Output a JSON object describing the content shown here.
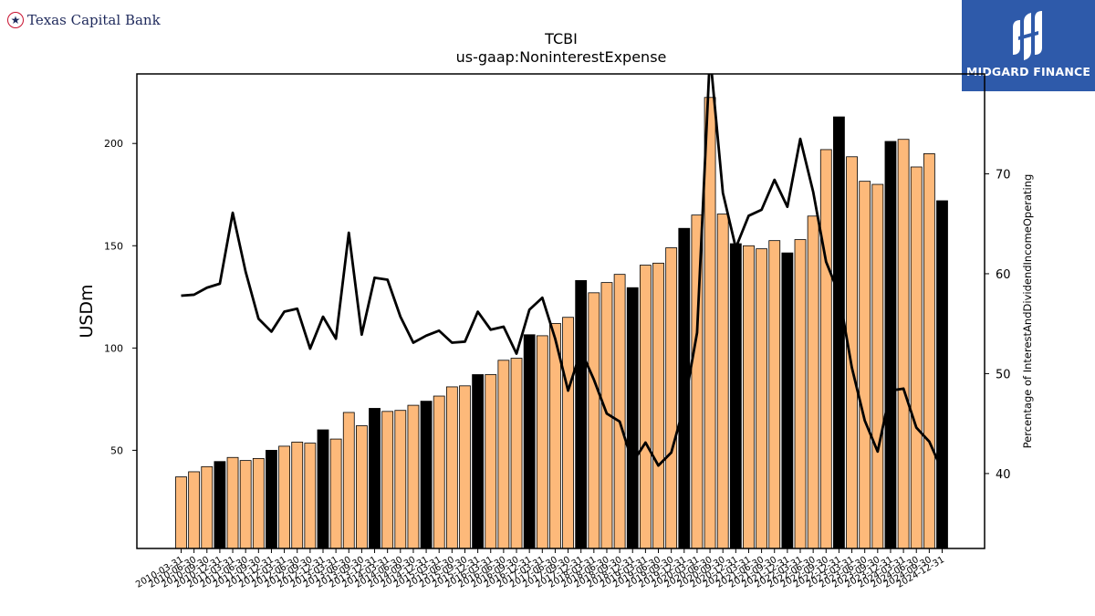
{
  "logos": {
    "left_text": "Texas Capital Bank",
    "right_text": "MIDGARD FINANCE"
  },
  "colors": {
    "bar_default": "#fdb97a",
    "bar_q4": "#000000",
    "line": "#000000"
  },
  "chart_data": {
    "type": "bar",
    "title": "TCBI",
    "subtitle": "us-gaap:NoninterestExpense",
    "ylabel": "USDm",
    "y2label": "Percentage of InterestAndDividendIncomeOperating",
    "ylim": [
      2,
      234
    ],
    "y2lim": [
      32.5,
      80
    ],
    "yticks": [
      50,
      100,
      150,
      200
    ],
    "y2ticks": [
      40,
      50,
      60,
      70
    ],
    "categories": [
      "2010-03-31",
      "2010-06-30",
      "2010-09-30",
      "2010-12-31",
      "2011-03-31",
      "2011-06-30",
      "2011-09-30",
      "2011-12-31",
      "2012-03-31",
      "2012-06-30",
      "2012-09-30",
      "2012-12-31",
      "2013-03-31",
      "2013-06-30",
      "2013-09-30",
      "2013-12-31",
      "2014-03-31",
      "2014-06-30",
      "2014-09-30",
      "2014-12-31",
      "2015-03-31",
      "2015-06-30",
      "2015-09-30",
      "2015-12-31",
      "2016-03-31",
      "2016-06-30",
      "2016-09-30",
      "2016-12-31",
      "2017-03-31",
      "2017-06-30",
      "2017-09-30",
      "2017-12-31",
      "2018-03-31",
      "2018-06-30",
      "2018-09-30",
      "2018-12-31",
      "2019-03-31",
      "2019-06-30",
      "2019-09-30",
      "2019-12-31",
      "2020-03-31",
      "2020-06-30",
      "2020-09-30",
      "2020-12-31",
      "2021-03-31",
      "2021-06-30",
      "2021-09-30",
      "2021-12-31",
      "2022-03-31",
      "2022-06-30",
      "2022-09-30",
      "2022-12-31",
      "2023-03-31",
      "2023-06-30",
      "2023-09-30",
      "2023-12-31",
      "2024-03-31",
      "2024-06-30",
      "2024-09-30",
      "2024-12-31"
    ],
    "series": [
      {
        "kind": "bar",
        "values": [
          37,
          39.5,
          42,
          44.5,
          46.5,
          45,
          46,
          50,
          52,
          54,
          53.5,
          60,
          55.5,
          68.5,
          62,
          70.5,
          69,
          69.5,
          72,
          74,
          76.5,
          81,
          81.5,
          87,
          87,
          94,
          95,
          106.5,
          106,
          112,
          115,
          133,
          127,
          132,
          136,
          129.5,
          140.5,
          141.5,
          149,
          158.5,
          165,
          222.5,
          165.5,
          151,
          150,
          148.5,
          152.5,
          146.5,
          153,
          164.5,
          197,
          213,
          193.5,
          181.5,
          180,
          201,
          202,
          188.5,
          195,
          172
        ]
      },
      {
        "kind": "line",
        "axis": "right",
        "values": [
          57.8,
          57.9,
          58.6,
          59.0,
          66.1,
          60.2,
          55.5,
          54.2,
          56.2,
          56.5,
          52.5,
          55.7,
          53.5,
          64.1,
          53.9,
          59.6,
          59.4,
          55.7,
          53.1,
          53.8,
          54.3,
          53.1,
          53.2,
          56.2,
          54.4,
          54.7,
          52.0,
          56.4,
          57.6,
          53.5,
          48.3,
          52.3,
          49.4,
          46.0,
          45.2,
          41.1,
          43.1,
          40.8,
          42.1,
          46.8,
          54.1,
          82.0,
          68.1,
          62.6,
          65.8,
          66.4,
          69.4,
          66.7,
          73.5,
          68.2,
          61.2,
          58.0,
          50.6,
          45.3,
          42.2,
          48.3,
          48.5,
          44.6,
          43.2,
          40.3
        ]
      }
    ]
  }
}
